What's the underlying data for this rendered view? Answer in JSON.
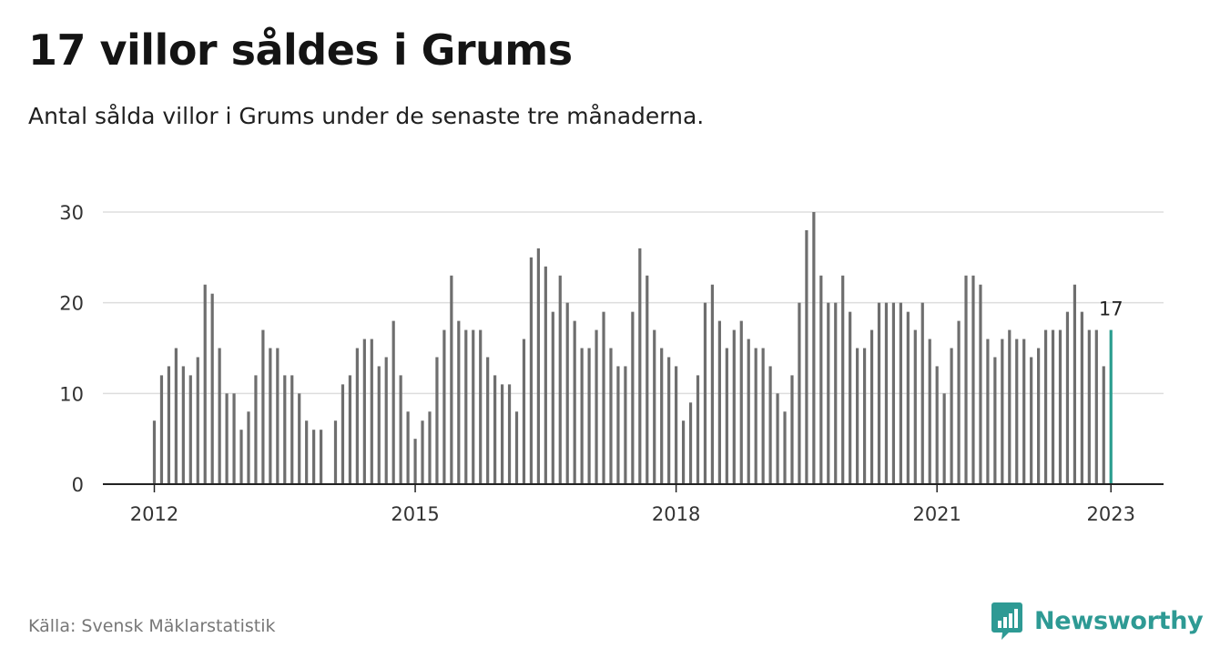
{
  "header": {
    "title": "17 villor såldes i Grums",
    "subtitle": "Antal sålda villor i Grums under de senaste tre månaderna."
  },
  "footer": {
    "source": "Källa: Svensk Mäklarstatistik",
    "brand": "Newsworthy"
  },
  "colors": {
    "bar": "#6e6e6e",
    "highlight": "#2a9d8f",
    "grid": "#dddddd",
    "axis": "#222222",
    "brand": "#2e9a94"
  },
  "icons": {
    "logo": "newsworthy-logo-icon"
  },
  "chart_data": {
    "type": "bar",
    "title": "17 villor såldes i Grums",
    "xlabel": "",
    "ylabel": "",
    "ylim": [
      0,
      30
    ],
    "y_ticks": [
      0,
      10,
      20,
      30
    ],
    "x_ticks": [
      "2012",
      "2015",
      "2018",
      "2021",
      "2023"
    ],
    "grid": true,
    "start": "2012-01",
    "end": "2023-01",
    "values": [
      7,
      12,
      13,
      15,
      13,
      12,
      14,
      22,
      21,
      15,
      10,
      10,
      6,
      8,
      12,
      17,
      15,
      15,
      12,
      12,
      10,
      7,
      6,
      6,
      null,
      7,
      11,
      12,
      15,
      16,
      16,
      13,
      14,
      18,
      12,
      8,
      5,
      7,
      8,
      14,
      17,
      23,
      18,
      17,
      17,
      17,
      14,
      12,
      11,
      11,
      8,
      16,
      25,
      26,
      24,
      19,
      23,
      20,
      18,
      15,
      15,
      17,
      19,
      15,
      13,
      13,
      19,
      26,
      23,
      17,
      15,
      14,
      13,
      7,
      9,
      12,
      20,
      22,
      18,
      15,
      17,
      18,
      16,
      15,
      15,
      13,
      10,
      8,
      12,
      20,
      28,
      30,
      23,
      20,
      20,
      23,
      19,
      15,
      15,
      17,
      20,
      20,
      20,
      20,
      19,
      17,
      20,
      16,
      13,
      10,
      15,
      18,
      23,
      23,
      22,
      16,
      14,
      16,
      17,
      16,
      16,
      14,
      15,
      17,
      17,
      17,
      19,
      22,
      19,
      17,
      17,
      13,
      17
    ],
    "highlight": {
      "label": "17",
      "value": 17,
      "date": "2023-01"
    }
  }
}
